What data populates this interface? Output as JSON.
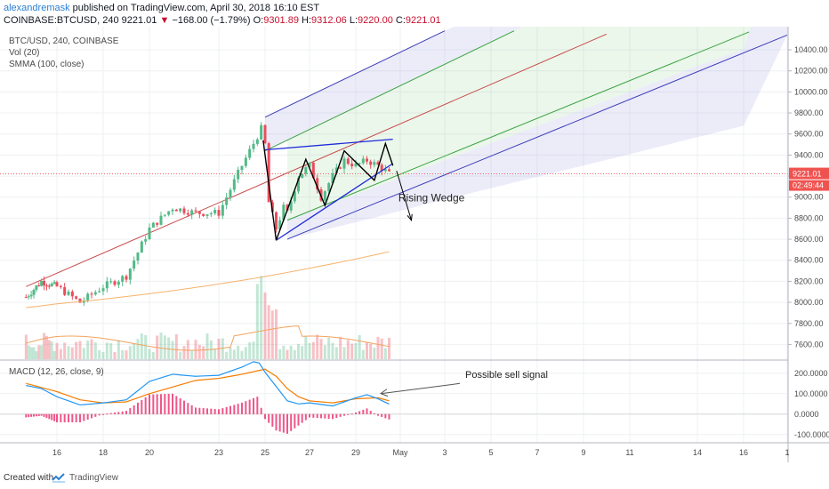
{
  "header": {
    "author": "alexandremask",
    "published": "published on TradingView.com, April 30, 2018 16:10 EST",
    "symbol": "COINBASE:BTCUSD, 240",
    "last": "9221.01",
    "change_arrow": "▼",
    "change": "−168.00 (−1.79%)",
    "open_label": "O:",
    "open": "9301.89",
    "high_label": "H:",
    "high": "9312.06",
    "low_label": "L:",
    "low": "9220.00",
    "close_label": "C:",
    "close": "9221.01"
  },
  "legend": {
    "symbol": "BTC/USD, 240, COINBASE",
    "volume": "Vol (20)",
    "smma": "SMMA (100, close)",
    "macd": "MACD (12, 26, close, 9)"
  },
  "annotations": {
    "rising_wedge": "Rising Wedge",
    "sell_signal": "Possible sell signal"
  },
  "price_badge": "9221.01",
  "countdown_badge": "02:49:44",
  "footer": {
    "created_with": "Created with",
    "brand": "TradingView"
  },
  "colors": {
    "up": "#53b987",
    "down": "#eb4d5c",
    "price_line": "#ef5350",
    "macd_line": "#2196f3",
    "signal_line": "#f57c00",
    "histogram": "#e91e63",
    "smma": "#f7b26b",
    "pitchfork_median": "#c84b4b",
    "pitchfork_inner": "#3aa341",
    "pitchfork_outer": "#3d3db8"
  },
  "chart_data": [
    {
      "type": "candlestick",
      "title": "BTC/USD, 240, COINBASE",
      "ylim": [
        7460,
        10620
      ],
      "y_ticks": [
        7600,
        7800,
        8000,
        8200,
        8400,
        8600,
        8800,
        9000,
        9200,
        9400,
        9600,
        9800,
        10000,
        10200,
        10400
      ],
      "y_tick_labels": [
        "7600.00",
        "7800.00",
        "8000.00",
        "8200.00",
        "8400.00",
        "8600.00",
        "8800.00",
        "9000.00",
        "9200.00",
        "9400.00",
        "9600.00",
        "9800.00",
        "10000.00",
        "10200.00",
        "10400.00"
      ],
      "x_tick_labels": [
        "16",
        "18",
        "20",
        "23",
        "25",
        "27",
        "29",
        "May",
        "3",
        "5",
        "7",
        "9",
        "11",
        "14",
        "16",
        "1"
      ],
      "x_tick_dates": [
        "2018-04-16",
        "2018-04-18",
        "2018-04-20",
        "2018-04-23",
        "2018-04-25",
        "2018-04-27",
        "2018-04-29",
        "2018-05-01",
        "2018-05-03",
        "2018-05-05",
        "2018-05-07",
        "2018-05-09",
        "2018-05-11",
        "2018-05-14",
        "2018-05-16",
        "2018-06-01"
      ],
      "close_anchors": [
        [
          "2018-04-14",
          8050
        ],
        [
          "2018-04-15",
          8200
        ],
        [
          "2018-04-16",
          8150
        ],
        [
          "2018-04-17",
          8000
        ],
        [
          "2018-04-18",
          8150
        ],
        [
          "2018-04-19",
          8250
        ],
        [
          "2018-04-20",
          8700
        ],
        [
          "2018-04-21",
          8900
        ],
        [
          "2018-04-22",
          8850
        ],
        [
          "2018-04-23",
          8850
        ],
        [
          "2018-04-24",
          9300
        ],
        [
          "2018-04-24T20:00",
          9650
        ],
        [
          "2018-04-25",
          9500
        ],
        [
          "2018-04-25T04:00",
          8950
        ],
        [
          "2018-04-25T12:00",
          8700
        ],
        [
          "2018-04-25T20:00",
          8900
        ],
        [
          "2018-04-26",
          8850
        ],
        [
          "2018-04-26T12:00",
          9200
        ],
        [
          "2018-04-27",
          9300
        ],
        [
          "2018-04-27T12:00",
          9000
        ],
        [
          "2018-04-28",
          9200
        ],
        [
          "2018-04-28T12:00",
          9350
        ],
        [
          "2018-04-29",
          9300
        ],
        [
          "2018-04-29T12:00",
          9350
        ],
        [
          "2018-04-30",
          9300
        ],
        [
          "2018-04-30T12:00",
          9221
        ]
      ],
      "smma_start": 7950,
      "smma_end": 8490,
      "last_price": 9221.01,
      "pattern": {
        "label": "Rising Wedge",
        "upper_line": [
          [
            "2018-04-25",
            9450
          ],
          [
            "2018-04-30T16:00",
            9550
          ]
        ],
        "lower_line": [
          [
            "2018-04-25T12:00",
            8590
          ],
          [
            "2018-04-30T16:00",
            9320
          ]
        ],
        "zigzag": [
          [
            "2018-04-24T22:00",
            9540
          ],
          [
            "2018-04-25T12:00",
            8590
          ],
          [
            "2018-04-26T20:00",
            9360
          ],
          [
            "2018-04-27T16:00",
            8920
          ],
          [
            "2018-04-28T12:00",
            9440
          ],
          [
            "2018-04-29T20:00",
            9160
          ],
          [
            "2018-04-30T08:00",
            9510
          ],
          [
            "2018-04-30T16:00",
            9300
          ]
        ],
        "arrow": [
          [
            "2018-04-30T20:00",
            9250
          ],
          [
            "2018-05-01T12:00",
            8780
          ]
        ]
      },
      "pitchfork": {
        "median": [
          [
            "2018-04-14",
            8150
          ],
          [
            "2018-05-10",
            10550
          ]
        ],
        "lines": [
          {
            "kind": "outer",
            "points": [
              [
                "2018-04-25",
                9760
              ],
              [
                "2018-05-03",
                10580
              ]
            ]
          },
          {
            "kind": "inner",
            "points": [
              [
                "2018-04-25",
                9440
              ],
              [
                "2018-05-06",
                10580
              ]
            ]
          },
          {
            "kind": "inner",
            "points": [
              [
                "2018-04-26",
                8780
              ],
              [
                "2018-05-18",
                10570
              ]
            ]
          },
          {
            "kind": "outer",
            "points": [
              [
                "2018-04-26",
                8600
              ],
              [
                "2018-06-01",
                10540
              ]
            ]
          }
        ]
      }
    },
    {
      "type": "bar",
      "title": "Vol (20)",
      "note": "volume histogram overlaid at bottom of price pane (no scale shown)"
    },
    {
      "type": "line",
      "title": "MACD (12, 26, close, 9)",
      "ylim": [
        -140,
        260
      ],
      "y_ticks": [
        -100,
        0,
        100,
        200
      ],
      "y_tick_labels": [
        "-100.0000",
        "0.0000",
        "100.0000",
        "200.0000"
      ],
      "series": [
        {
          "name": "MACD",
          "points": [
            [
              "2018-04-14",
              140
            ],
            [
              "2018-04-15",
              125
            ],
            [
              "2018-04-16",
              85
            ],
            [
              "2018-04-17",
              45
            ],
            [
              "2018-04-18",
              55
            ],
            [
              "2018-04-19",
              70
            ],
            [
              "2018-04-20",
              160
            ],
            [
              "2018-04-21",
              195
            ],
            [
              "2018-04-22",
              185
            ],
            [
              "2018-04-23",
              190
            ],
            [
              "2018-04-24",
              230
            ],
            [
              "2018-04-24T16:00",
              265
            ],
            [
              "2018-04-25",
              205
            ],
            [
              "2018-04-26",
              65
            ],
            [
              "2018-04-26T12:00",
              50
            ],
            [
              "2018-04-27",
              55
            ],
            [
              "2018-04-28",
              40
            ],
            [
              "2018-04-29",
              80
            ],
            [
              "2018-04-29T12:00",
              95
            ],
            [
              "2018-04-30",
              75
            ],
            [
              "2018-04-30T16:00",
              40
            ]
          ]
        },
        {
          "name": "Signal",
          "points": [
            [
              "2018-04-14",
              150
            ],
            [
              "2018-04-16",
              110
            ],
            [
              "2018-04-17",
              70
            ],
            [
              "2018-04-18",
              55
            ],
            [
              "2018-04-19",
              60
            ],
            [
              "2018-04-20",
              100
            ],
            [
              "2018-04-22",
              165
            ],
            [
              "2018-04-23",
              175
            ],
            [
              "2018-04-24",
              195
            ],
            [
              "2018-04-25",
              220
            ],
            [
              "2018-04-25T12:00",
              185
            ],
            [
              "2018-04-26",
              125
            ],
            [
              "2018-04-26T12:00",
              85
            ],
            [
              "2018-04-27",
              65
            ],
            [
              "2018-04-28",
              55
            ],
            [
              "2018-04-29",
              75
            ],
            [
              "2018-04-30",
              80
            ],
            [
              "2018-04-30T16:00",
              60
            ]
          ]
        }
      ],
      "annotation": {
        "label": "Possible sell signal",
        "target": [
          "2018-04-30",
          92
        ]
      }
    }
  ]
}
